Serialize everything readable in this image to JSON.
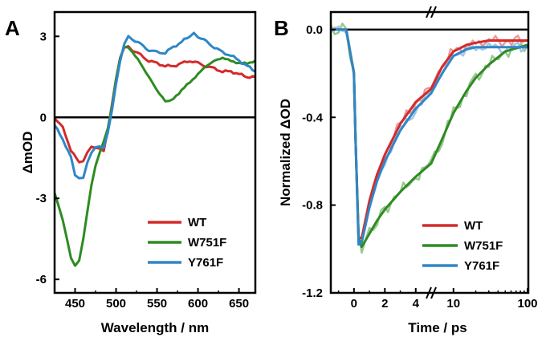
{
  "chart_data": [
    {
      "panel": "A",
      "type": "line",
      "xlabel": "Wavelength / nm",
      "ylabel": "ΔmOD",
      "xlim": [
        425,
        670
      ],
      "ylim": [
        -6.5,
        3.9
      ],
      "xticks": [
        450,
        500,
        550,
        600,
        650
      ],
      "yticks": [
        3,
        0,
        -3,
        -6
      ],
      "zero_line": true,
      "legend": "bottom-right",
      "colors": {
        "WT": "#d42a2a",
        "W751F": "#2e8b22",
        "Y761F": "#2f86c7"
      },
      "series": [
        {
          "name": "WT",
          "x": [
            425,
            435,
            445,
            455,
            460,
            465,
            470,
            475,
            480,
            485,
            490,
            495,
            500,
            505,
            510,
            515,
            520,
            530,
            540,
            550,
            560,
            570,
            580,
            590,
            600,
            610,
            620,
            630,
            640,
            650,
            660,
            670
          ],
          "y": [
            0.0,
            -0.4,
            -1.2,
            -1.7,
            -1.6,
            -1.3,
            -1.1,
            -1.1,
            -1.2,
            -1.2,
            -0.5,
            0.5,
            1.4,
            2.2,
            2.6,
            2.6,
            2.5,
            2.3,
            2.1,
            2.0,
            1.9,
            1.9,
            2.0,
            2.1,
            2.0,
            1.9,
            1.8,
            1.7,
            1.7,
            1.6,
            1.5,
            1.5
          ]
        },
        {
          "name": "W751F",
          "x": [
            425,
            430,
            435,
            440,
            445,
            450,
            455,
            460,
            465,
            470,
            475,
            480,
            485,
            490,
            495,
            500,
            505,
            510,
            515,
            520,
            530,
            540,
            550,
            560,
            565,
            570,
            580,
            590,
            600,
            610,
            620,
            630,
            640,
            650,
            660,
            670
          ],
          "y": [
            -2.8,
            -3.3,
            -3.8,
            -4.5,
            -5.2,
            -5.5,
            -5.3,
            -4.5,
            -3.5,
            -2.5,
            -1.8,
            -1.3,
            -0.9,
            -0.4,
            0.4,
            1.4,
            2.2,
            2.6,
            2.6,
            2.4,
            2.0,
            1.5,
            1.0,
            0.6,
            0.6,
            0.7,
            1.0,
            1.3,
            1.6,
            1.9,
            2.1,
            2.2,
            2.1,
            2.0,
            2.0,
            2.1
          ]
        },
        {
          "name": "Y761F",
          "x": [
            425,
            435,
            445,
            450,
            455,
            460,
            465,
            470,
            475,
            480,
            485,
            490,
            495,
            500,
            505,
            510,
            515,
            520,
            530,
            540,
            550,
            560,
            570,
            580,
            590,
            595,
            600,
            610,
            620,
            630,
            640,
            650,
            660,
            670
          ],
          "y": [
            -0.3,
            -0.8,
            -1.5,
            -2.1,
            -2.3,
            -2.2,
            -1.7,
            -1.3,
            -1.1,
            -1.1,
            -1.1,
            -0.6,
            0.3,
            1.2,
            2.1,
            2.7,
            3.0,
            2.9,
            2.7,
            2.5,
            2.4,
            2.4,
            2.6,
            2.8,
            3.0,
            3.1,
            3.0,
            2.8,
            2.6,
            2.4,
            2.3,
            2.1,
            1.9,
            1.7
          ]
        }
      ]
    },
    {
      "panel": "B",
      "type": "line",
      "xlabel": "Time / ps",
      "ylabel": "Normalized ΔOD",
      "x_scale": "linear from -1.5 to 5 ps, axis break, then log from 5 to 100 ps",
      "xlim": [
        -1.5,
        100
      ],
      "ylim": [
        -1.2,
        0.08
      ],
      "xticks": [
        "0",
        "2",
        "4",
        "10",
        "100"
      ],
      "yticks": [
        0.0,
        -0.4,
        -0.8,
        -1.2
      ],
      "zero_line": true,
      "legend": "bottom-right",
      "colors": {
        "WT": "#d42a2a",
        "W751F": "#2e8b22",
        "Y761F": "#2f86c7"
      },
      "series": [
        {
          "name": "WT",
          "x": [
            -1.5,
            -1,
            -0.5,
            0,
            0.1,
            0.3,
            0.5,
            1,
            1.5,
            2,
            3,
            4,
            5,
            7,
            10,
            15,
            20,
            30,
            50,
            100
          ],
          "y": [
            0.0,
            0.0,
            0.0,
            -0.2,
            -0.5,
            -0.95,
            -0.95,
            -0.78,
            -0.66,
            -0.57,
            -0.43,
            -0.33,
            -0.27,
            -0.17,
            -0.1,
            -0.07,
            -0.06,
            -0.05,
            -0.05,
            -0.05
          ]
        },
        {
          "name": "W751F",
          "x": [
            -1.5,
            -1,
            -0.5,
            0,
            0.1,
            0.3,
            0.5,
            1,
            1.5,
            2,
            3,
            4,
            5,
            7,
            10,
            15,
            20,
            30,
            50,
            100
          ],
          "y": [
            0.0,
            0.0,
            0.0,
            -0.2,
            -0.5,
            -0.95,
            -0.99,
            -0.93,
            -0.87,
            -0.82,
            -0.74,
            -0.67,
            -0.61,
            -0.5,
            -0.38,
            -0.28,
            -0.22,
            -0.16,
            -0.1,
            -0.07
          ]
        },
        {
          "name": "Y761F",
          "x": [
            -1.5,
            -1,
            -0.5,
            0,
            0.1,
            0.3,
            0.5,
            1,
            1.5,
            2,
            3,
            4,
            5,
            7,
            10,
            15,
            20,
            30,
            50,
            100
          ],
          "y": [
            0.0,
            0.0,
            0.0,
            -0.2,
            -0.5,
            -0.98,
            -0.97,
            -0.81,
            -0.69,
            -0.6,
            -0.46,
            -0.36,
            -0.29,
            -0.2,
            -0.12,
            -0.09,
            -0.08,
            -0.08,
            -0.08,
            -0.08
          ]
        }
      ]
    }
  ]
}
